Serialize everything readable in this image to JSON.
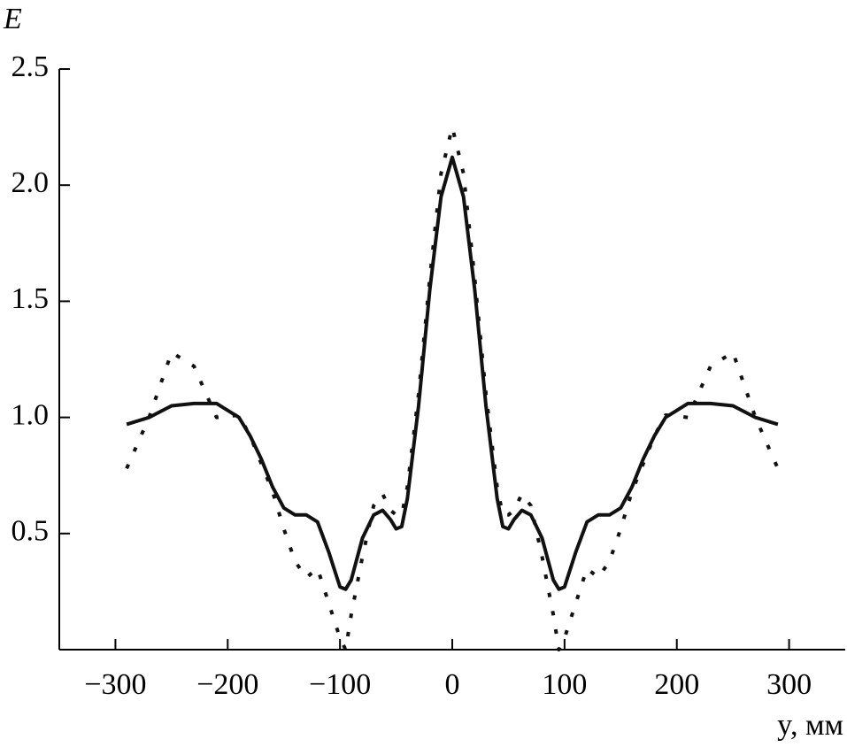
{
  "chart_data": {
    "type": "line",
    "ylabel": "E",
    "xlabel": "y, мм",
    "xlim": [
      -350,
      350
    ],
    "ylim": [
      0,
      2.5
    ],
    "xticks": [
      {
        "value": -300,
        "label": "−300"
      },
      {
        "value": -200,
        "label": "−200"
      },
      {
        "value": -100,
        "label": "−100"
      },
      0,
      100,
      200,
      300
    ],
    "yticks": [
      0.5,
      {
        "value": 1,
        "label": "1.0"
      },
      1.5,
      {
        "value": 2,
        "label": "2.0"
      },
      2.5
    ],
    "x": [
      -290,
      -270,
      -250,
      -230,
      -210,
      -190,
      -180,
      -170,
      -160,
      -150,
      -140,
      -130,
      -120,
      -110,
      -100,
      -95,
      -90,
      -80,
      -70,
      -62,
      -55,
      -50,
      -45,
      -40,
      -30,
      -20,
      -10,
      0,
      10,
      20,
      30,
      40,
      45,
      50,
      55,
      62,
      70,
      80,
      90,
      95,
      100,
      110,
      120,
      130,
      140,
      150,
      160,
      170,
      180,
      190,
      210,
      230,
      250,
      270,
      290
    ],
    "series": [
      {
        "style": "solid",
        "color": "#111111",
        "values": [
          0.97,
          1.0,
          1.05,
          1.06,
          1.06,
          1.0,
          0.92,
          0.82,
          0.7,
          0.61,
          0.58,
          0.58,
          0.55,
          0.42,
          0.27,
          0.26,
          0.3,
          0.48,
          0.58,
          0.6,
          0.56,
          0.52,
          0.53,
          0.65,
          1.05,
          1.55,
          1.95,
          2.12,
          1.95,
          1.55,
          1.05,
          0.65,
          0.53,
          0.52,
          0.56,
          0.6,
          0.58,
          0.48,
          0.3,
          0.26,
          0.27,
          0.42,
          0.55,
          0.58,
          0.58,
          0.61,
          0.7,
          0.82,
          0.92,
          1.0,
          1.06,
          1.06,
          1.05,
          1.0,
          0.97
        ]
      },
      {
        "style": "dotted",
        "color": "#111111",
        "values": [
          0.78,
          1.0,
          1.28,
          1.22,
          1.0,
          1.01,
          0.92,
          0.8,
          0.68,
          0.52,
          0.38,
          0.31,
          0.35,
          0.2,
          0.05,
          0.0,
          0.15,
          0.4,
          0.62,
          0.67,
          0.6,
          0.58,
          0.58,
          0.7,
          1.1,
          1.6,
          2.05,
          2.25,
          2.05,
          1.6,
          1.1,
          0.7,
          0.58,
          0.58,
          0.6,
          0.67,
          0.62,
          0.4,
          0.15,
          0.0,
          0.05,
          0.2,
          0.35,
          0.31,
          0.38,
          0.52,
          0.68,
          0.8,
          0.92,
          1.01,
          1.0,
          1.22,
          1.28,
          1.0,
          0.78
        ]
      }
    ]
  }
}
